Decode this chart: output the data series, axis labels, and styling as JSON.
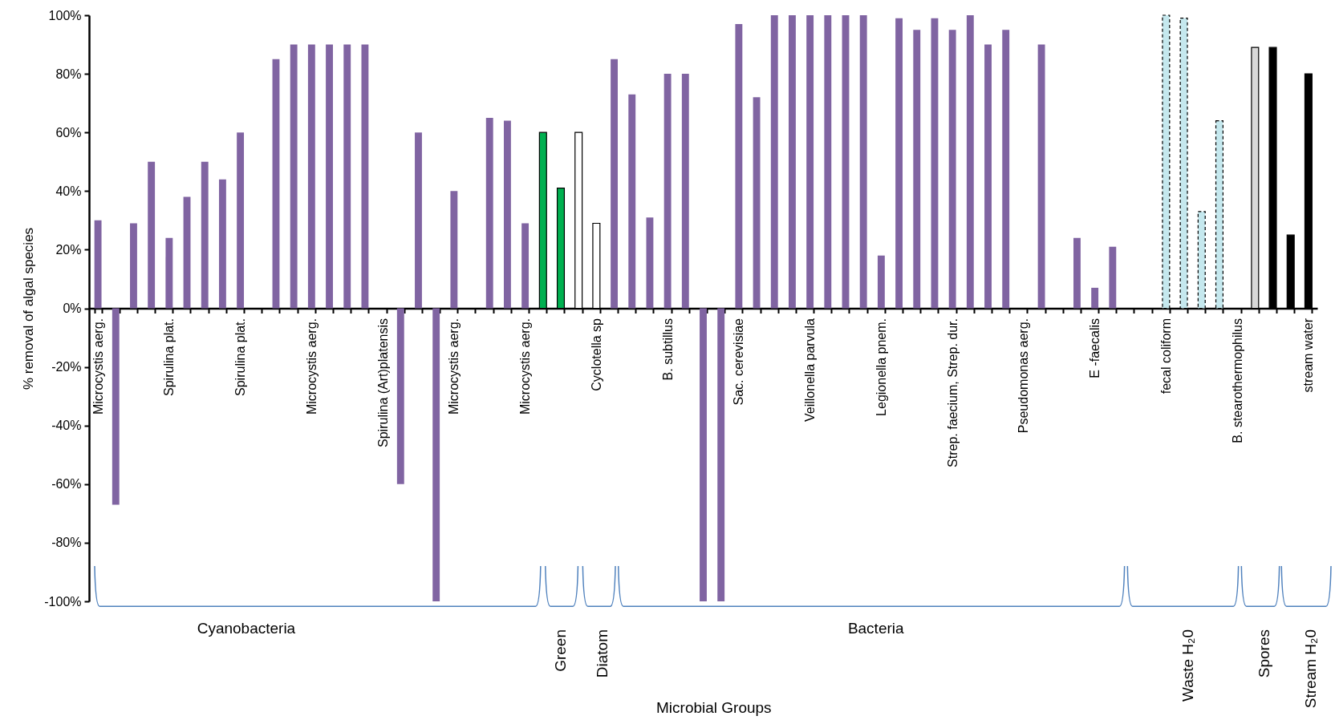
{
  "chart_data": {
    "type": "bar",
    "ylabel": "% removal of algal species",
    "categories": [
      "Microcystis aerg.",
      null,
      null,
      null,
      "Spirulina plat.",
      null,
      null,
      null,
      "Spirulina plat.",
      null,
      null,
      null,
      "Microcystis aerg.",
      null,
      null,
      null,
      "Spirulina (Art)platensis",
      null,
      null,
      null,
      "Microcystis aerg.",
      null,
      null,
      null,
      "Microcystis aerg.",
      null,
      null,
      null,
      "Cyclotella sp",
      null,
      null,
      null,
      "B. subtillus",
      null,
      null,
      null,
      "Sac. cerevisiae",
      null,
      null,
      null,
      "Veillonella parvula",
      null,
      null,
      null,
      "Legionella pnem.",
      null,
      null,
      null,
      "Strep. faecium, Strep. dur.",
      null,
      null,
      null,
      "Pseudomonas aerg.",
      null,
      null,
      null,
      "E -faecalis",
      null,
      null,
      null,
      "fecal coliform",
      null,
      null,
      null,
      "B. stearothermophilus",
      null,
      null,
      null,
      "stream water"
    ],
    "series": [
      {
        "color": "#8064a2",
        "values": [
          30,
          -67,
          29,
          50,
          24,
          38,
          50,
          44,
          60,
          null,
          85,
          90,
          90,
          90,
          90,
          90,
          null,
          -60,
          60,
          -100,
          40,
          null,
          65,
          64,
          29,
          null,
          null,
          null,
          null,
          85,
          73,
          31,
          80,
          80,
          -100,
          -100,
          97,
          72,
          100,
          100,
          100,
          100,
          100,
          100,
          18,
          99,
          95,
          99,
          95,
          100,
          90,
          95,
          null,
          90,
          null,
          24,
          7,
          21,
          null,
          null,
          null,
          null,
          null,
          null,
          null,
          null,
          null,
          null,
          null
        ]
      },
      {
        "color": "#00b050",
        "values": [
          null,
          null,
          null,
          null,
          null,
          null,
          null,
          null,
          null,
          null,
          null,
          null,
          null,
          null,
          null,
          null,
          null,
          null,
          null,
          null,
          null,
          null,
          null,
          null,
          null,
          60,
          41,
          null,
          null,
          null,
          null,
          null,
          null,
          null,
          null,
          null,
          null,
          null,
          null,
          null,
          null,
          null,
          null,
          null,
          null,
          null,
          null,
          null,
          null,
          null,
          null,
          null,
          null,
          null,
          null,
          null,
          null,
          null,
          null,
          null,
          null,
          null,
          null,
          null,
          null,
          null,
          null,
          null,
          null
        ]
      },
      {
        "color": "#ffffff",
        "values": [
          null,
          null,
          null,
          null,
          null,
          null,
          null,
          null,
          null,
          null,
          null,
          null,
          null,
          null,
          null,
          null,
          null,
          null,
          null,
          null,
          null,
          null,
          null,
          null,
          null,
          null,
          null,
          60,
          29,
          null,
          null,
          null,
          null,
          null,
          null,
          null,
          null,
          null,
          null,
          null,
          null,
          null,
          null,
          null,
          null,
          null,
          null,
          null,
          null,
          null,
          null,
          null,
          null,
          null,
          null,
          null,
          null,
          null,
          null,
          null,
          null,
          null,
          null,
          null,
          null,
          null,
          null,
          null,
          null
        ]
      },
      {
        "color": "#c5e8ee",
        "line_style": "dashed",
        "values": [
          null,
          null,
          null,
          null,
          null,
          null,
          null,
          null,
          null,
          null,
          null,
          null,
          null,
          null,
          null,
          null,
          null,
          null,
          null,
          null,
          null,
          null,
          null,
          null,
          null,
          null,
          null,
          null,
          null,
          null,
          null,
          null,
          null,
          null,
          null,
          null,
          null,
          null,
          null,
          null,
          null,
          null,
          null,
          null,
          null,
          null,
          null,
          null,
          null,
          null,
          null,
          null,
          null,
          null,
          null,
          null,
          null,
          null,
          null,
          null,
          100,
          99,
          33,
          64,
          null,
          null,
          null,
          null,
          null
        ]
      },
      {
        "color": "#d9d9d9",
        "values": [
          null,
          null,
          null,
          null,
          null,
          null,
          null,
          null,
          null,
          null,
          null,
          null,
          null,
          null,
          null,
          null,
          null,
          null,
          null,
          null,
          null,
          null,
          null,
          null,
          null,
          null,
          null,
          null,
          null,
          null,
          null,
          null,
          null,
          null,
          null,
          null,
          null,
          null,
          null,
          null,
          null,
          null,
          null,
          null,
          null,
          null,
          null,
          null,
          null,
          null,
          null,
          null,
          null,
          null,
          null,
          null,
          null,
          null,
          null,
          null,
          null,
          null,
          null,
          null,
          null,
          89,
          null,
          null,
          null
        ]
      },
      {
        "color": "#000000",
        "values": [
          null,
          null,
          null,
          null,
          null,
          null,
          null,
          null,
          null,
          null,
          null,
          null,
          null,
          null,
          null,
          null,
          null,
          null,
          null,
          null,
          null,
          null,
          null,
          null,
          null,
          null,
          null,
          null,
          null,
          null,
          null,
          null,
          null,
          null,
          null,
          null,
          null,
          null,
          null,
          null,
          null,
          null,
          null,
          null,
          null,
          null,
          null,
          null,
          null,
          null,
          null,
          null,
          null,
          null,
          null,
          null,
          null,
          null,
          null,
          null,
          null,
          null,
          null,
          null,
          null,
          null,
          89,
          25,
          80
        ]
      }
    ],
    "ylim": [
      -100,
      100
    ],
    "yticks": [
      {
        "value": -100,
        "label": "-100%"
      },
      {
        "value": -80,
        "label": "-80%"
      },
      {
        "value": -60,
        "label": "-60%"
      },
      {
        "value": -40,
        "label": "-40%"
      },
      {
        "value": -20,
        "label": "-20%"
      },
      {
        "value": 0,
        "label": "0%"
      },
      {
        "value": 20,
        "label": "20%"
      },
      {
        "value": 40,
        "label": "40%"
      },
      {
        "value": 60,
        "label": "60%"
      },
      {
        "value": 80,
        "label": "80%"
      },
      {
        "value": 100,
        "label": "100%"
      }
    ],
    "annotations": [
      "Cyanobacteria",
      "Green",
      "Diatom",
      "Bacteria",
      "Waste H₂0",
      "Spores",
      "Stream H₂0",
      "Microbial Groups"
    ]
  }
}
